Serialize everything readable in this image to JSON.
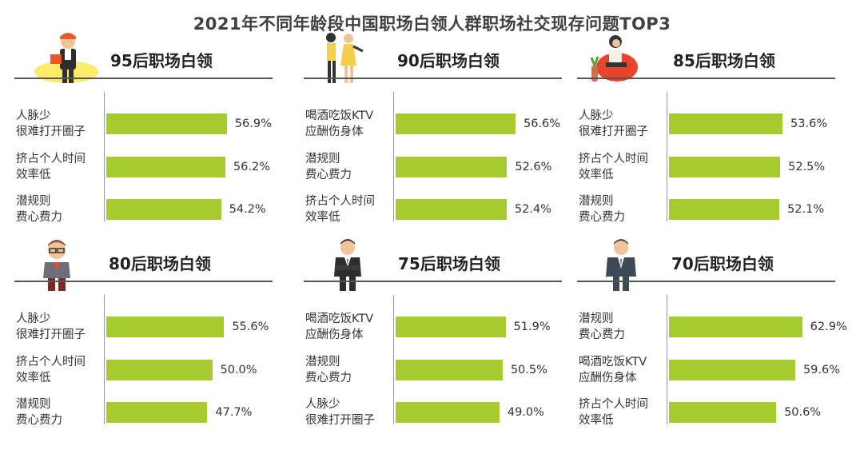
{
  "chart_data": {
    "type": "bar",
    "title": "2021年不同年龄段中国职场白领人群职场社交现存问题TOP3",
    "panels": [
      {
        "title": "95后职场白领",
        "icon": "office-worker-with-tablet-icon",
        "items": [
          {
            "label": [
              "人脉少",
              "很难打开圈子"
            ],
            "value": 56.9,
            "display": "56.9%"
          },
          {
            "label": [
              "挤占个人时间",
              "效率低"
            ],
            "value": 56.2,
            "display": "56.2%"
          },
          {
            "label": [
              "潜规则",
              "费心费力"
            ],
            "value": 54.2,
            "display": "54.2%"
          }
        ]
      },
      {
        "title": "90后职场白领",
        "icon": "two-women-walking-icon",
        "items": [
          {
            "label": [
              "喝酒吃饭KTV",
              "应酬伤身体"
            ],
            "value": 56.6,
            "display": "56.6%"
          },
          {
            "label": [
              "潜规则",
              "费心费力"
            ],
            "value": 52.6,
            "display": "52.6%"
          },
          {
            "label": [
              "挤占个人时间",
              "效率低"
            ],
            "value": 52.4,
            "display": "52.4%"
          }
        ]
      },
      {
        "title": "85后职场白领",
        "icon": "woman-on-chair-icon",
        "items": [
          {
            "label": [
              "人脉少",
              "很难打开圈子"
            ],
            "value": 53.6,
            "display": "53.6%"
          },
          {
            "label": [
              "挤占个人时间",
              "效率低"
            ],
            "value": 52.5,
            "display": "52.5%"
          },
          {
            "label": [
              "潜规则",
              "费心费力"
            ],
            "value": 52.1,
            "display": "52.1%"
          }
        ]
      },
      {
        "title": "80后职场白领",
        "icon": "man-with-glasses-icon",
        "items": [
          {
            "label": [
              "人脉少",
              "很难打开圈子"
            ],
            "value": 55.6,
            "display": "55.6%"
          },
          {
            "label": [
              "挤占个人时间",
              "效率低"
            ],
            "value": 50.0,
            "display": "50.0%"
          },
          {
            "label": [
              "潜规则",
              "费心费力"
            ],
            "value": 47.7,
            "display": "47.7%"
          }
        ]
      },
      {
        "title": "75后职场白领",
        "icon": "businessman-arms-crossed-icon",
        "items": [
          {
            "label": [
              "喝酒吃饭KTV",
              "应酬伤身体"
            ],
            "value": 51.9,
            "display": "51.9%"
          },
          {
            "label": [
              "潜规则",
              "费心费力"
            ],
            "value": 50.5,
            "display": "50.5%"
          },
          {
            "label": [
              "人脉少",
              "很难打开圈子"
            ],
            "value": 49.0,
            "display": "49.0%"
          }
        ]
      },
      {
        "title": "70后职场白领",
        "icon": "businessman-in-suit-icon",
        "items": [
          {
            "label": [
              "潜规则",
              "费心费力"
            ],
            "value": 62.9,
            "display": "62.9%"
          },
          {
            "label": [
              "喝酒吃饭KTV",
              "应酬伤身体"
            ],
            "value": 59.6,
            "display": "59.6%"
          },
          {
            "label": [
              "挤占个人时间",
              "效率低"
            ],
            "value": 50.6,
            "display": "50.6%"
          }
        ]
      }
    ],
    "colors": {
      "bar": "#a6cb2f",
      "rule": "#555555",
      "axis": "#999999",
      "title": "#404040"
    }
  }
}
